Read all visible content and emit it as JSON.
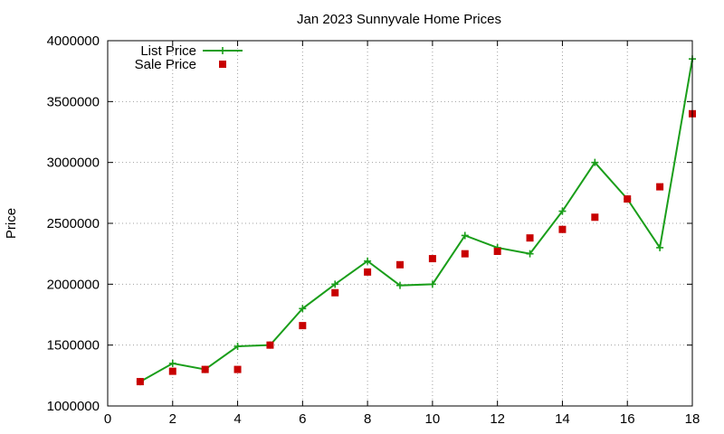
{
  "chart_data": {
    "type": "line",
    "title": "Jan 2023 Sunnyvale Home Prices",
    "xlabel": "",
    "ylabel": "Price",
    "xlim": [
      0,
      18
    ],
    "ylim": [
      1000000,
      4000000
    ],
    "xticks": [
      0,
      2,
      4,
      6,
      8,
      10,
      12,
      14,
      16,
      18
    ],
    "yticks": [
      1000000,
      1500000,
      2000000,
      2500000,
      3000000,
      3500000,
      4000000
    ],
    "grid": true,
    "legend_position": "top-left",
    "series": [
      {
        "name": "List Price",
        "style": "line-with-plus-markers",
        "color": "#1a9e1a",
        "x": [
          1,
          2,
          3,
          4,
          5,
          6,
          7,
          8,
          9,
          10,
          11,
          12,
          13,
          14,
          15,
          16,
          17,
          18
        ],
        "values": [
          1200000,
          1350000,
          1300000,
          1490000,
          1500000,
          1800000,
          2000000,
          2190000,
          1990000,
          2000000,
          2400000,
          2300000,
          2250000,
          2600000,
          3000000,
          2700000,
          2300000,
          3850000
        ]
      },
      {
        "name": "Sale Price",
        "style": "square-markers",
        "color": "#c80000",
        "x": [
          1,
          2,
          3,
          4,
          5,
          6,
          7,
          8,
          9,
          10,
          11,
          12,
          13,
          14,
          15,
          16,
          17,
          18
        ],
        "values": [
          1200000,
          1285000,
          1300000,
          1300000,
          1500000,
          1660000,
          1930000,
          2100000,
          2160000,
          2210000,
          2250000,
          2270000,
          2380000,
          2450000,
          2550000,
          2700000,
          2800000,
          3400000
        ]
      }
    ]
  }
}
